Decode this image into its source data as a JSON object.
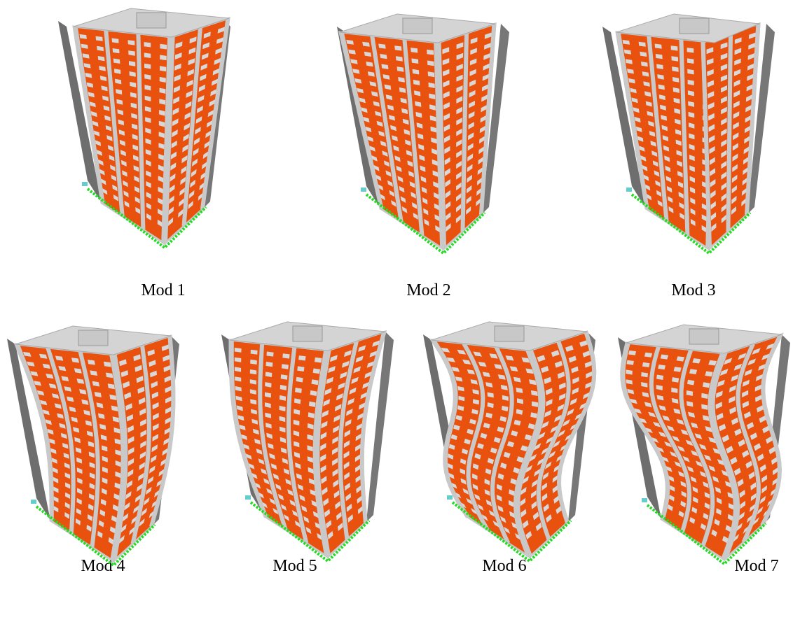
{
  "figure": {
    "captions": [
      "Mod 1",
      "Mod 2",
      "Mod 3",
      "Mod 4",
      "Mod 5",
      "Mod 6",
      "Mod 7"
    ]
  }
}
